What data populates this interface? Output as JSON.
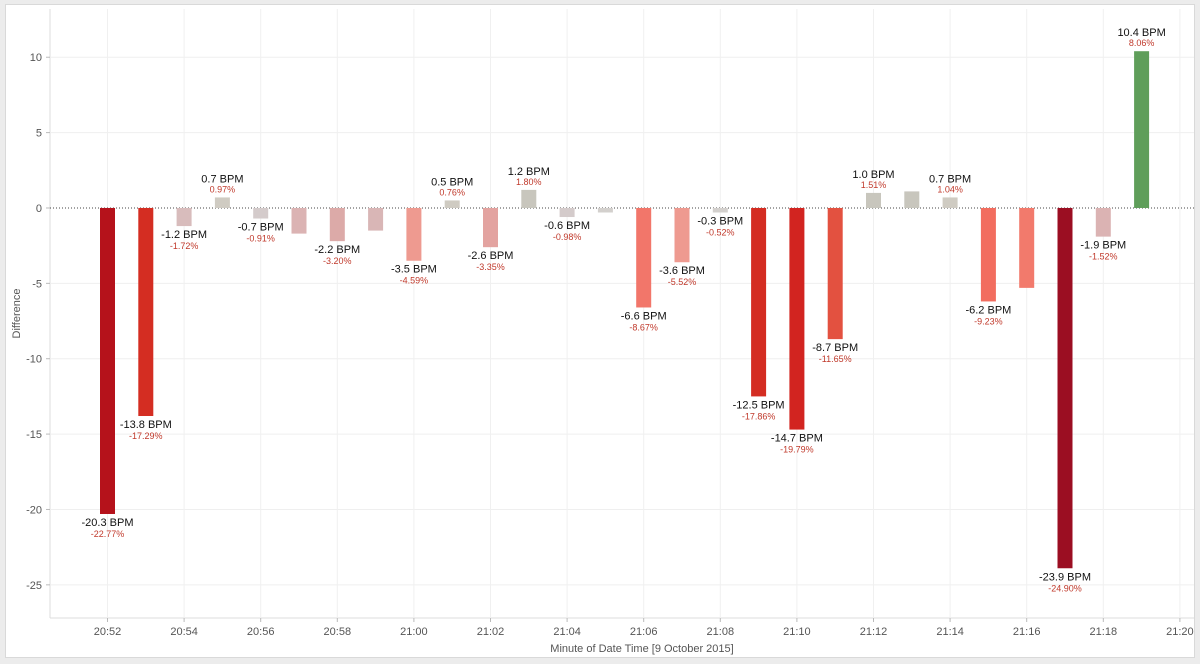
{
  "chart_data": {
    "type": "bar",
    "xlabel": "Minute of Date Time [9 October 2015]",
    "ylabel": "Difference",
    "ylim": [
      -27.2,
      13.2
    ],
    "yticks": [
      10,
      5,
      0,
      -5,
      -10,
      -15,
      -20,
      -25
    ],
    "xticks": [
      "20:52",
      "20:54",
      "20:56",
      "20:58",
      "21:00",
      "21:02",
      "21:04",
      "21:06",
      "21:08",
      "21:10",
      "21:12",
      "21:14",
      "21:16",
      "21:18",
      "21:20"
    ],
    "grid": true,
    "zero_line": "dotted",
    "bars": [
      {
        "time": "20:52",
        "value": -20.3,
        "label": "-20.3 BPM",
        "pct": "-22.77%",
        "color": "#b5121b"
      },
      {
        "time": "20:53",
        "value": -13.8,
        "label": "-13.8 BPM",
        "pct": "-17.29%",
        "color": "#d42d22"
      },
      {
        "time": "20:54",
        "value": -1.2,
        "label": "-1.2 BPM",
        "pct": "-1.72%",
        "color": "#d8bcbc"
      },
      {
        "time": "20:55",
        "value": 0.7,
        "label": "0.7 BPM",
        "pct": "0.97%",
        "color": "#cfcbc2"
      },
      {
        "time": "20:56",
        "value": -0.7,
        "label": "-0.7 BPM",
        "pct": "-0.91%",
        "color": "#d4cbcb"
      },
      {
        "time": "20:57",
        "value": -1.7,
        "label": "",
        "pct": "",
        "color": "#dbb3b3"
      },
      {
        "time": "20:58",
        "value": -2.2,
        "label": "-2.2 BPM",
        "pct": "-3.20%",
        "color": "#dcaaa8"
      },
      {
        "time": "20:59",
        "value": -1.5,
        "label": "",
        "pct": "",
        "color": "#d9b6b6"
      },
      {
        "time": "21:00",
        "value": -3.5,
        "label": "-3.5 BPM",
        "pct": "-4.59%",
        "color": "#ee9a90"
      },
      {
        "time": "21:01",
        "value": 0.5,
        "label": "0.5 BPM",
        "pct": "0.76%",
        "color": "#cfcbc2"
      },
      {
        "time": "21:02",
        "value": -2.6,
        "label": "-2.6 BPM",
        "pct": "-3.35%",
        "color": "#e3a3a0"
      },
      {
        "time": "21:03",
        "value": 1.2,
        "label": "1.2 BPM",
        "pct": "1.80%",
        "color": "#c8c6bd"
      },
      {
        "time": "21:04",
        "value": -0.6,
        "label": "-0.6 BPM",
        "pct": "-0.98%",
        "color": "#d4cbcb"
      },
      {
        "time": "21:05",
        "value": -0.3,
        "label": "",
        "pct": "",
        "color": "#d3d0cd"
      },
      {
        "time": "21:06",
        "value": -6.6,
        "label": "-6.6 BPM",
        "pct": "-8.67%",
        "color": "#f2766a"
      },
      {
        "time": "21:07",
        "value": -3.6,
        "label": "-3.6 BPM",
        "pct": "-5.52%",
        "color": "#ee9a90"
      },
      {
        "time": "21:08",
        "value": -0.3,
        "label": "-0.3 BPM",
        "pct": "-0.52%",
        "color": "#d3d0cd"
      },
      {
        "time": "21:09",
        "value": -12.5,
        "label": "-12.5 BPM",
        "pct": "-17.86%",
        "color": "#d42d22"
      },
      {
        "time": "21:10",
        "value": -14.7,
        "label": "-14.7 BPM",
        "pct": "-19.79%",
        "color": "#d22420"
      },
      {
        "time": "21:11",
        "value": -8.7,
        "label": "-8.7 BPM",
        "pct": "-11.65%",
        "color": "#e35140"
      },
      {
        "time": "21:12",
        "value": 1.0,
        "label": "1.0 BPM",
        "pct": "1.51%",
        "color": "#c8c6bd"
      },
      {
        "time": "21:13",
        "value": 1.1,
        "label": "",
        "pct": "",
        "color": "#c8c6bd"
      },
      {
        "time": "21:14",
        "value": 0.7,
        "label": "0.7 BPM",
        "pct": "1.04%",
        "color": "#cfcbc2"
      },
      {
        "time": "21:15",
        "value": -6.2,
        "label": "-6.2 BPM",
        "pct": "-9.23%",
        "color": "#f26d5f"
      },
      {
        "time": "21:16",
        "value": -5.3,
        "label": "",
        "pct": "",
        "color": "#f27a6c"
      },
      {
        "time": "21:17",
        "value": -23.9,
        "label": "-23.9 BPM",
        "pct": "-24.90%",
        "color": "#9b0e22"
      },
      {
        "time": "21:18",
        "value": -1.9,
        "label": "-1.9 BPM",
        "pct": "-1.52%",
        "color": "#dbb3b3"
      },
      {
        "time": "21:19",
        "value": 10.4,
        "label": "10.4 BPM",
        "pct": "8.06%",
        "color": "#5f9e5a"
      }
    ]
  }
}
